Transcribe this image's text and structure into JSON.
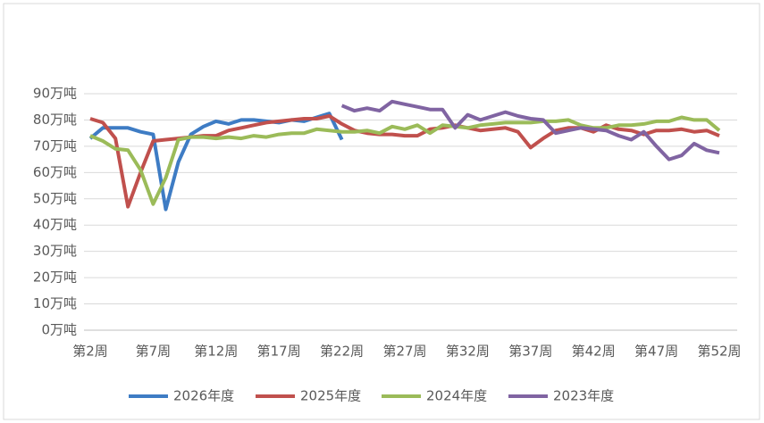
{
  "chart_data": {
    "type": "line",
    "categories": [
      "第2周",
      null,
      null,
      null,
      null,
      "第7周",
      null,
      null,
      null,
      null,
      "第12周",
      null,
      null,
      null,
      null,
      "第17周",
      null,
      null,
      null,
      null,
      "第22周",
      null,
      null,
      null,
      null,
      "第27周",
      null,
      null,
      null,
      null,
      "第32周",
      null,
      null,
      null,
      null,
      "第37周",
      null,
      null,
      null,
      null,
      "第42周",
      null,
      null,
      null,
      null,
      "第47周",
      null,
      null,
      null,
      null,
      "第52周"
    ],
    "series": [
      {
        "name": "2026年度",
        "color": "#3e7cc4",
        "values": [
          73,
          77,
          77,
          77,
          75.5,
          74.5,
          46,
          64,
          74.5,
          77.5,
          79.5,
          78.5,
          80,
          80,
          79.5,
          79,
          80,
          79.5,
          81,
          82.5,
          72.5,
          null,
          null,
          null,
          null,
          null,
          null,
          null,
          null,
          null,
          null,
          null,
          null,
          null,
          null,
          null,
          null,
          null,
          null,
          null,
          null,
          null,
          null,
          null,
          null,
          null,
          null,
          null,
          null,
          null,
          null
        ]
      },
      {
        "name": "2025年度",
        "color": "#c0504d",
        "values": [
          80.5,
          79,
          73,
          47,
          60,
          72,
          72.5,
          73,
          73.5,
          74,
          74,
          76,
          77,
          78,
          79,
          79.5,
          80,
          80.5,
          80.5,
          81.5,
          78.5,
          76,
          75,
          74.5,
          74.5,
          74,
          74,
          76.5,
          77,
          78,
          77,
          76,
          76.5,
          77,
          75.5,
          69.5,
          73,
          76,
          77,
          77,
          75.5,
          78,
          76.5,
          76,
          74.5,
          76,
          76,
          76.5,
          75.5,
          76,
          74
        ]
      },
      {
        "name": "2024年度",
        "color": "#9bbb59",
        "values": [
          74,
          72,
          69,
          68.5,
          61,
          48,
          58,
          72.5,
          73.5,
          73.5,
          73,
          73.5,
          73,
          74,
          73.5,
          74.5,
          75,
          75,
          76.5,
          76,
          75.5,
          75.5,
          76,
          75,
          77.5,
          76.5,
          78,
          75,
          78,
          77.5,
          77,
          78,
          78.5,
          79,
          79,
          79,
          79.5,
          79.5,
          80,
          78,
          77,
          77,
          78,
          78,
          78.5,
          79.5,
          79.5,
          81,
          80,
          80,
          76
        ]
      },
      {
        "name": "2023年度",
        "color": "#8064a2",
        "values": [
          null,
          null,
          null,
          null,
          null,
          null,
          null,
          null,
          null,
          null,
          null,
          null,
          null,
          null,
          null,
          null,
          null,
          null,
          null,
          null,
          85.5,
          83.5,
          84.5,
          83.5,
          87,
          86,
          85,
          84,
          84,
          77,
          82,
          80,
          81.5,
          83,
          81.5,
          80.5,
          80,
          75,
          76,
          77,
          76.5,
          76,
          74,
          72.5,
          75.5,
          70,
          65,
          66.5,
          71,
          68.5,
          67.5
        ]
      }
    ],
    "ylim": [
      0,
      90
    ],
    "yticks": [
      {
        "value": 0,
        "label": "0万吨"
      },
      {
        "value": 10,
        "label": "10万吨"
      },
      {
        "value": 20,
        "label": "20万吨"
      },
      {
        "value": 30,
        "label": "30万吨"
      },
      {
        "value": 40,
        "label": "40万吨"
      },
      {
        "value": 50,
        "label": "50万吨"
      },
      {
        "value": 60,
        "label": "60万吨"
      },
      {
        "value": 70,
        "label": "70万吨"
      },
      {
        "value": 80,
        "label": "80万吨"
      },
      {
        "value": 90,
        "label": "90万吨"
      }
    ],
    "grid": true,
    "legend": "bottom"
  }
}
